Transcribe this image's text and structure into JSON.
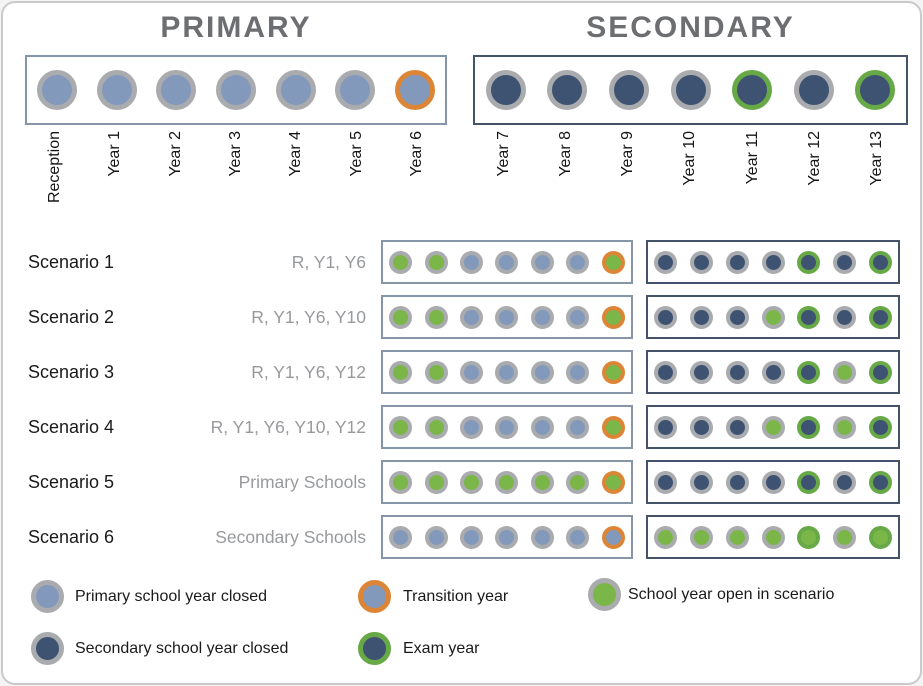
{
  "header": {
    "primary_title": "PRIMARY",
    "secondary_title": "SECONDARY",
    "primary_years": [
      "Reception",
      "Year 1",
      "Year 2",
      "Year 3",
      "Year 4",
      "Year 5",
      "Year 6"
    ],
    "secondary_years": [
      "Year 7",
      "Year 8",
      "Year 9",
      "Year 10",
      "Year 11",
      "Year 12",
      "Year 13"
    ],
    "primary_states": [
      "P",
      "P",
      "P",
      "P",
      "P",
      "P",
      "PT"
    ],
    "secondary_states": [
      "S",
      "S",
      "S",
      "S",
      "SE",
      "S",
      "SE"
    ]
  },
  "scenarios": [
    {
      "label": "Scenario 1",
      "description": "R, Y1, Y6",
      "primary": [
        "O",
        "O",
        "P",
        "P",
        "P",
        "P",
        "OT"
      ],
      "secondary": [
        "S",
        "S",
        "S",
        "S",
        "SE",
        "S",
        "SE"
      ]
    },
    {
      "label": "Scenario 2",
      "description": "R, Y1, Y6, Y10",
      "primary": [
        "O",
        "O",
        "P",
        "P",
        "P",
        "P",
        "OT"
      ],
      "secondary": [
        "S",
        "S",
        "S",
        "O",
        "SE",
        "S",
        "SE"
      ]
    },
    {
      "label": "Scenario 3",
      "description": "R, Y1, Y6, Y12",
      "primary": [
        "O",
        "O",
        "P",
        "P",
        "P",
        "P",
        "OT"
      ],
      "secondary": [
        "S",
        "S",
        "S",
        "S",
        "SE",
        "O",
        "SE"
      ]
    },
    {
      "label": "Scenario 4",
      "description": "R, Y1, Y6, Y10, Y12",
      "primary": [
        "O",
        "O",
        "P",
        "P",
        "P",
        "P",
        "OT"
      ],
      "secondary": [
        "S",
        "S",
        "S",
        "O",
        "SE",
        "O",
        "SE"
      ]
    },
    {
      "label": "Scenario 5",
      "description": "Primary Schools",
      "primary": [
        "O",
        "O",
        "O",
        "O",
        "O",
        "O",
        "OT"
      ],
      "secondary": [
        "S",
        "S",
        "S",
        "S",
        "SE",
        "S",
        "SE"
      ]
    },
    {
      "label": "Scenario 6",
      "description": "Secondary Schools",
      "primary": [
        "P",
        "P",
        "P",
        "P",
        "P",
        "P",
        "PT"
      ],
      "secondary": [
        "O",
        "O",
        "O",
        "O",
        "OE",
        "O",
        "OE"
      ]
    }
  ],
  "states": {
    "P": {
      "fill": "primary_closed",
      "ring": "ring_gray",
      "name": "primary-closed"
    },
    "S": {
      "fill": "secondary_closed",
      "ring": "ring_gray",
      "name": "secondary-closed"
    },
    "O": {
      "fill": "open",
      "ring": "ring_gray",
      "name": "open"
    },
    "PT": {
      "fill": "primary_closed",
      "ring": "ring_orange",
      "name": "transition"
    },
    "OT": {
      "fill": "open",
      "ring": "ring_orange",
      "name": "open-transition"
    },
    "SE": {
      "fill": "secondary_closed",
      "ring": "ring_green",
      "name": "exam"
    },
    "OE": {
      "fill": "open",
      "ring": "ring_green",
      "name": "open-exam"
    }
  },
  "colors": {
    "primary_closed": "#8299BB",
    "secondary_closed": "#3E5371",
    "open": "#7AB648",
    "ring_gray": "#A9ABAE",
    "ring_orange": "#DD8536",
    "ring_green": "#67A847",
    "title": "#6D6E71"
  },
  "legend": [
    {
      "label": "Primary school year closed",
      "fill": "primary_closed",
      "ring": "ring_gray"
    },
    {
      "label": "Transition year",
      "fill": "primary_closed",
      "ring": "ring_orange"
    },
    {
      "label": "School year open in scenario",
      "fill": "open",
      "ring": "ring_gray"
    },
    {
      "label": "Secondary school year closed",
      "fill": "secondary_closed",
      "ring": "ring_gray"
    },
    {
      "label": "Exam year",
      "fill": "secondary_closed",
      "ring": "ring_green"
    }
  ]
}
